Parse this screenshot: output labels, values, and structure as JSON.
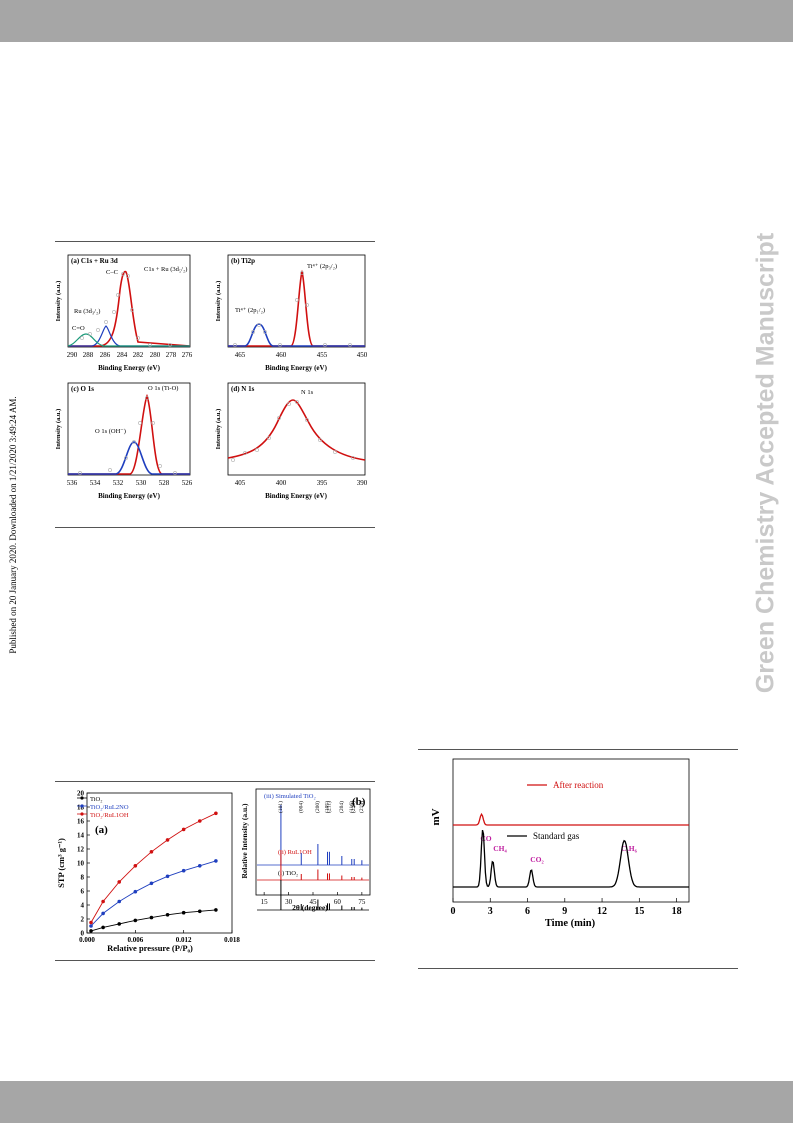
{
  "side_note": "Published on 20 January 2020. Downloaded on 1/21/2020 3:49:24 AM.",
  "watermark": "Green Chemistry Accepted Manuscript",
  "xps": {
    "panel_a": {
      "title": "(a) C1s + Ru 3d",
      "xlabel": "Binding Energy (eV)",
      "ylabel": "Intensity (a.u.)",
      "ticks": [
        "290",
        "288",
        "286",
        "284",
        "282",
        "280",
        "278",
        "276"
      ],
      "ann": {
        "cc": "C–C",
        "c1s": "C1s + Ru (3d₅/₂)",
        "ru": "Ru (3d₃/₂)",
        "co": "C=O"
      }
    },
    "panel_b": {
      "title": "(b) Ti2p",
      "xlabel": "Binding Energy (eV)",
      "ylabel": "Intensity (a.u.)",
      "ticks": [
        "465",
        "460",
        "455",
        "450"
      ],
      "ann": {
        "t1": "Ti⁴⁺ (2p₃/₂)",
        "t2": "Ti⁴⁺ (2p₁/₂)"
      }
    },
    "panel_c": {
      "title": "(c) O 1s",
      "xlabel": "Binding Energy (eV)",
      "ylabel": "Intensity (a.u.)",
      "ticks": [
        "536",
        "534",
        "532",
        "530",
        "528",
        "526"
      ],
      "ann": {
        "o1": "O 1s (Ti-O)",
        "o2": "O 1s (OH⁻)"
      }
    },
    "panel_d": {
      "title": "(d) N 1s",
      "xlabel": "Binding Energy (eV)",
      "ylabel": "Intensity (a.u.)",
      "ticks": [
        "405",
        "400",
        "395",
        "390"
      ],
      "ann": {
        "n1": "N 1s"
      }
    }
  },
  "chart_data": [
    {
      "type": "scatter",
      "panel": "a",
      "x": [
        276,
        278,
        280,
        282,
        283,
        284,
        284.6,
        285.5,
        286.5,
        288,
        289,
        290
      ],
      "y": [
        0.02,
        0.03,
        0.05,
        0.22,
        0.62,
        0.95,
        0.99,
        0.7,
        0.3,
        0.14,
        0.05,
        0.01
      ]
    },
    {
      "type": "scatter",
      "panel": "b",
      "x": [
        450,
        452,
        455,
        456.5,
        457.3,
        458,
        460,
        462,
        463.3,
        464,
        466,
        468
      ],
      "y": [
        0.01,
        0.02,
        0.2,
        0.75,
        0.99,
        0.72,
        0.05,
        0.12,
        0.28,
        0.18,
        0.05,
        0.02
      ]
    },
    {
      "type": "scatter",
      "panel": "c",
      "x": [
        526,
        527,
        528,
        529,
        529.4,
        530,
        530.5,
        531,
        532,
        533,
        534,
        536
      ],
      "y": [
        0.02,
        0.06,
        0.45,
        0.95,
        0.99,
        0.8,
        0.55,
        0.4,
        0.22,
        0.1,
        0.05,
        0.01
      ]
    },
    {
      "type": "scatter",
      "panel": "d",
      "x": [
        390,
        392,
        394,
        396,
        397.5,
        398.5,
        399.5,
        401,
        403,
        405,
        407
      ],
      "y": [
        0.05,
        0.12,
        0.28,
        0.6,
        0.92,
        0.99,
        0.85,
        0.5,
        0.3,
        0.22,
        0.18
      ]
    },
    {
      "type": "scatter",
      "panel": "bet",
      "xlabel": "Relative pressure (P/P₀)",
      "ylabel": "STP (cm³ g⁻¹)",
      "xticks": [
        "0.000",
        "0.006",
        "0.012",
        "0.018"
      ],
      "yticks": [
        "0",
        "2",
        "4",
        "6",
        "8",
        "10",
        "12",
        "14",
        "16",
        "18",
        "20"
      ],
      "xlim": [
        0,
        0.018
      ],
      "ylim": [
        0,
        20
      ],
      "label": "(a)",
      "x": [
        0.0005,
        0.002,
        0.004,
        0.006,
        0.008,
        0.01,
        0.012,
        0.014,
        0.016
      ],
      "series": [
        {
          "name": "TiO₂",
          "color": "#000000",
          "values": [
            0.3,
            0.8,
            1.3,
            1.8,
            2.2,
            2.6,
            2.9,
            3.1,
            3.3
          ]
        },
        {
          "name": "TiO₂/RuL2NO",
          "color": "#1f3fbf",
          "values": [
            1.0,
            2.8,
            4.5,
            5.9,
            7.1,
            8.1,
            8.9,
            9.6,
            10.3
          ]
        },
        {
          "name": "TiO₂/RuL1OH",
          "color": "#d01010",
          "values": [
            1.5,
            4.5,
            7.3,
            9.6,
            11.6,
            13.3,
            14.8,
            16.0,
            17.1
          ]
        }
      ]
    },
    {
      "type": "line",
      "panel": "xrd",
      "xlabel": "2θ (degree)",
      "ylabel": "Relative Intensity (a.u.)",
      "label": "(b)",
      "xticks": [
        "15",
        "30",
        "45",
        "60",
        "75"
      ],
      "xlim": [
        10,
        80
      ],
      "peaks_x": [
        25.3,
        37.8,
        48.0,
        53.9,
        55.1,
        62.7,
        68.8,
        70.3,
        75.0
      ],
      "peaks_h": [
        1.0,
        0.2,
        0.35,
        0.22,
        0.22,
        0.15,
        0.1,
        0.1,
        0.08
      ],
      "peak_labels": [
        "(101)",
        "(004)",
        "(200)",
        "(105)",
        "(211)",
        "(204)",
        "(116)",
        "(220)",
        "(215)"
      ],
      "series": [
        {
          "name": "(iii) Simulated TiO₂",
          "color": "#1f3fbf"
        },
        {
          "name": "(ii) RuL1OH",
          "color": "#d01010"
        },
        {
          "name": "(i) TiO₂",
          "color": "#000000"
        }
      ]
    },
    {
      "type": "line",
      "panel": "gc",
      "xlabel": "Time (min)",
      "ylabel": "mV",
      "xticks": [
        "0",
        "3",
        "6",
        "9",
        "12",
        "15",
        "18"
      ],
      "xlim": [
        0,
        19
      ],
      "series": [
        {
          "name": "After reaction",
          "color": "#d01010",
          "peaks_x": [
            2.3
          ],
          "peaks_h": [
            0.6
          ]
        },
        {
          "name": "Standard gas",
          "color": "#000000",
          "peaks_x": [
            2.4,
            3.2,
            6.3,
            13.8
          ],
          "peaks_h": [
            1.0,
            0.45,
            0.3,
            0.8
          ]
        }
      ],
      "annotations": [
        "CO",
        "CH₄",
        "CO₂",
        "C₂H₆"
      ]
    }
  ]
}
